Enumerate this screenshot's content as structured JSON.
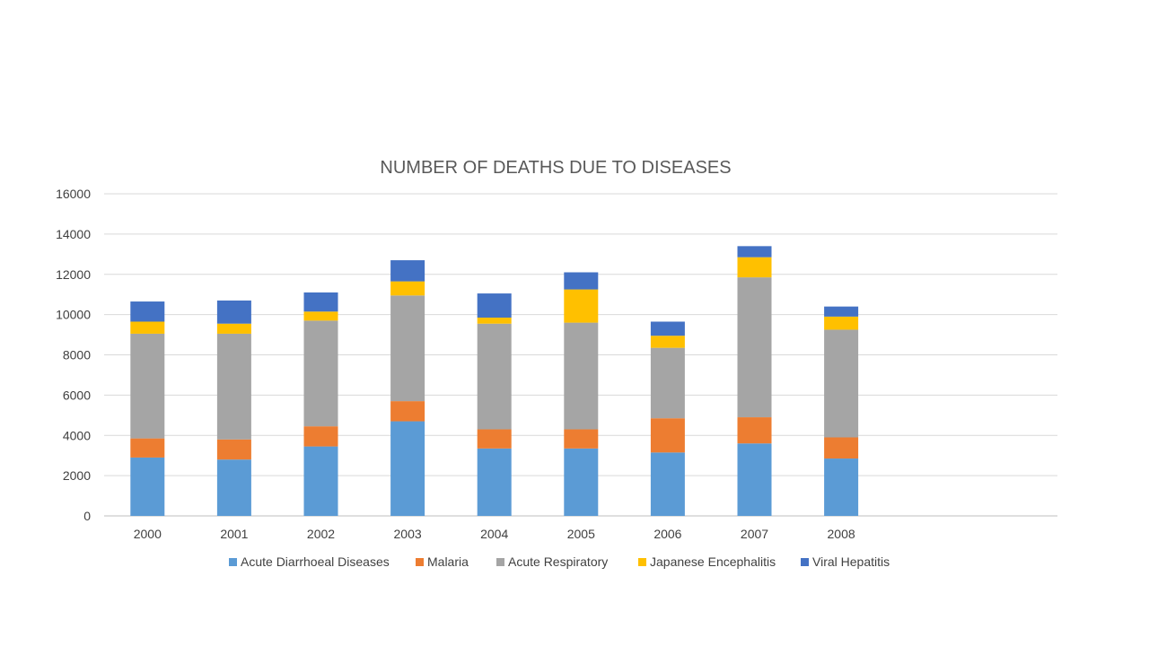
{
  "chart_data": {
    "type": "bar",
    "stacked": true,
    "title": "NUMBER OF  DEATHS DUE TO DISEASES",
    "xlabel": "",
    "ylabel": "",
    "categories": [
      "2000",
      "2001",
      "2002",
      "2003",
      "2004",
      "2005",
      "2006",
      "2007",
      "2008"
    ],
    "ylim": [
      0,
      16000
    ],
    "yticks": [
      "0",
      "2000",
      "4000",
      "6000",
      "8000",
      "10000",
      "12000",
      "14000",
      "16000"
    ],
    "grid": true,
    "legend_position": "bottom",
    "series": [
      {
        "name": "Acute Diarrhoeal Diseases",
        "color": "#5B9BD5",
        "values": [
          2900,
          2800,
          3450,
          4700,
          3350,
          3350,
          3150,
          3600,
          2850
        ]
      },
      {
        "name": "Malaria",
        "color": "#ED7D31",
        "values": [
          950,
          1000,
          1000,
          1000,
          950,
          950,
          1700,
          1300,
          1050
        ]
      },
      {
        "name": "Acute Respiratory",
        "color": "#A5A5A5",
        "values": [
          5200,
          5250,
          5250,
          5250,
          5250,
          5300,
          3500,
          6950,
          5350
        ]
      },
      {
        "name": "Japanese Encephalitis",
        "color": "#FFC000",
        "values": [
          600,
          500,
          450,
          700,
          300,
          1650,
          600,
          1000,
          650
        ]
      },
      {
        "name": "Viral Hepatitis",
        "color": "#4472C4",
        "values": [
          1000,
          1150,
          950,
          1050,
          1200,
          850,
          700,
          550,
          500
        ]
      }
    ]
  }
}
